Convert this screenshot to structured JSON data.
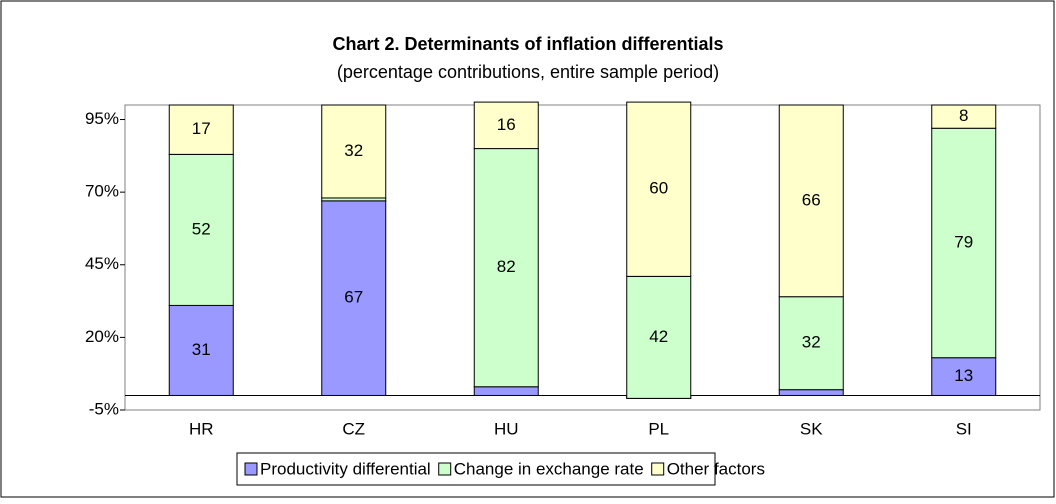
{
  "chart_data": {
    "type": "stacked-bar",
    "title": "Chart 2. Determinants of inflation differentials",
    "subtitle": "(percentage contributions, entire sample period)",
    "categories": [
      "HR",
      "CZ",
      "HU",
      "PL",
      "SK",
      "SI"
    ],
    "series": [
      {
        "name": "Productivity differential",
        "color": "#9999ff",
        "values": [
          31,
          67,
          3,
          -1,
          2,
          13
        ]
      },
      {
        "name": "Change in exchange rate",
        "color": "#ccffcc",
        "values": [
          52,
          1,
          82,
          42,
          32,
          79
        ]
      },
      {
        "name": "Other factors",
        "color": "#ffffcc",
        "values": [
          17,
          32,
          16,
          60,
          66,
          8
        ]
      }
    ],
    "ylim": [
      -5,
      100
    ],
    "yticks": [
      {
        "value": -5,
        "label": "-5%"
      },
      {
        "value": 20,
        "label": "20%"
      },
      {
        "value": 45,
        "label": "45%"
      },
      {
        "value": 70,
        "label": "70%"
      },
      {
        "value": 95,
        "label": "95%"
      }
    ],
    "legend": "bottom"
  }
}
